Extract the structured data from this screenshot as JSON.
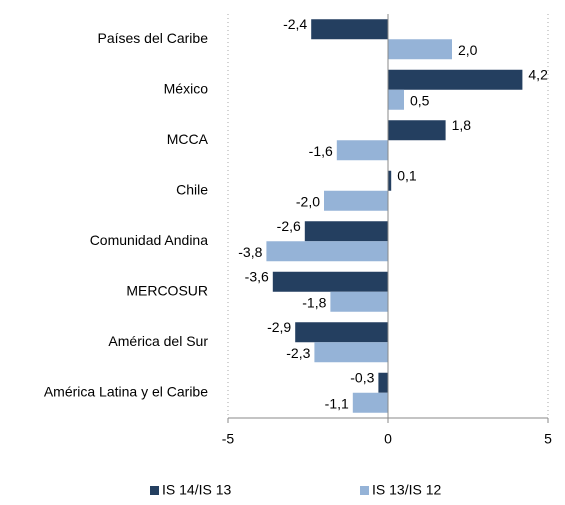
{
  "chart_data": {
    "type": "bar",
    "orientation": "horizontal",
    "categories": [
      "Países del Caribe",
      "México",
      "MCCA",
      "Chile",
      "Comunidad Andina",
      "MERCOSUR",
      "América del Sur",
      "América Latina y el Caribe"
    ],
    "series": [
      {
        "name": "IS 14/IS 13",
        "color": "#243f60",
        "values": [
          -2.4,
          4.2,
          1.8,
          0.1,
          -2.6,
          -3.6,
          -2.9,
          -0.3
        ],
        "value_labels": [
          "-2,4",
          "4,2",
          "1,8",
          "0,1",
          "-2,6",
          "-3,6",
          "-2,9",
          "-0,3"
        ]
      },
      {
        "name": "IS 13/IS 12",
        "color": "#95b3d7",
        "values": [
          2.0,
          0.5,
          -1.6,
          -2.0,
          -3.8,
          -1.8,
          -2.3,
          -1.1
        ],
        "value_labels": [
          "2,0",
          "0,5",
          "-1,6",
          "-2,0",
          "-3,8",
          "-1,8",
          "-2,3",
          "-1,1"
        ]
      }
    ],
    "xlim": [
      -5,
      5
    ],
    "xticks": [
      -5,
      0,
      5
    ],
    "grid": true,
    "legend": "bottom"
  }
}
